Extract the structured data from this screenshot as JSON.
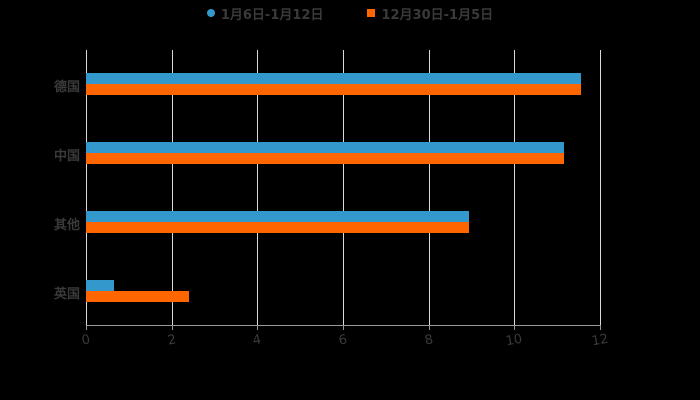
{
  "chart_data": {
    "type": "bar",
    "orientation": "horizontal",
    "title": "",
    "xlabel": "",
    "ylabel": "",
    "categories": [
      "德国",
      "中国",
      "其他",
      "英国"
    ],
    "series": [
      {
        "name": "1月6日-1月12日",
        "color": "#3399cc",
        "values": [
          11.55,
          11.15,
          8.95,
          0.65
        ]
      },
      {
        "name": "12月30日-1月5日",
        "color": "#ff6600",
        "values": [
          11.55,
          11.15,
          8.95,
          2.4
        ]
      }
    ],
    "xlim": [
      0,
      12
    ],
    "xticks": [
      "0",
      "2",
      "4",
      "6",
      "8",
      "10",
      "12"
    ],
    "grid": true,
    "legend_position": "top"
  },
  "legend": {
    "series_a": "1月6日-1月12日",
    "series_b": "12月30日-1月5日"
  },
  "colors": {
    "series_a": "#3399cc",
    "series_b": "#ff6600",
    "background": "#000000"
  }
}
